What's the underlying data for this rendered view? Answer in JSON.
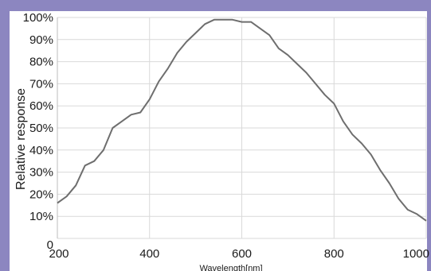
{
  "colors": {
    "frame": "#8c86c0",
    "plot_background": "#ffffff",
    "grid": "#d9d9d9",
    "line": "#6e6e6e"
  },
  "chart_data": {
    "type": "line",
    "title": "",
    "xlabel": "Wavelength[nm]",
    "ylabel": "Relative response",
    "xlim": [
      200,
      1000
    ],
    "ylim": [
      0,
      100
    ],
    "grid": true,
    "x_ticks": [
      200,
      400,
      600,
      800,
      1000
    ],
    "x_tick_labels": [
      "200",
      "400",
      "600",
      "800",
      "1000"
    ],
    "y_ticks": [
      0,
      10,
      20,
      30,
      40,
      50,
      60,
      70,
      80,
      90,
      100
    ],
    "y_tick_labels": [
      "0",
      "10%",
      "20%",
      "30%",
      "40%",
      "50%",
      "60%",
      "70%",
      "80%",
      "90%",
      "100%"
    ],
    "series": [
      {
        "x": [
          200,
          220,
          240,
          260,
          280,
          300,
          320,
          340,
          360,
          380,
          400,
          420,
          440,
          460,
          480,
          500,
          520,
          540,
          560,
          580,
          600,
          620,
          640,
          660,
          680,
          700,
          720,
          740,
          760,
          780,
          790,
          800,
          820,
          840,
          860,
          880,
          900,
          920,
          940,
          960,
          980,
          1000
        ],
        "values": [
          16,
          19,
          24,
          33,
          35,
          40,
          50,
          53,
          56,
          57,
          63,
          71,
          77,
          84,
          89,
          93,
          97,
          99,
          99,
          99,
          98,
          98,
          95,
          92,
          86,
          83,
          79,
          75,
          70,
          65,
          63,
          61,
          53,
          47,
          43,
          38,
          31,
          25,
          18,
          13,
          11,
          8
        ]
      }
    ]
  }
}
